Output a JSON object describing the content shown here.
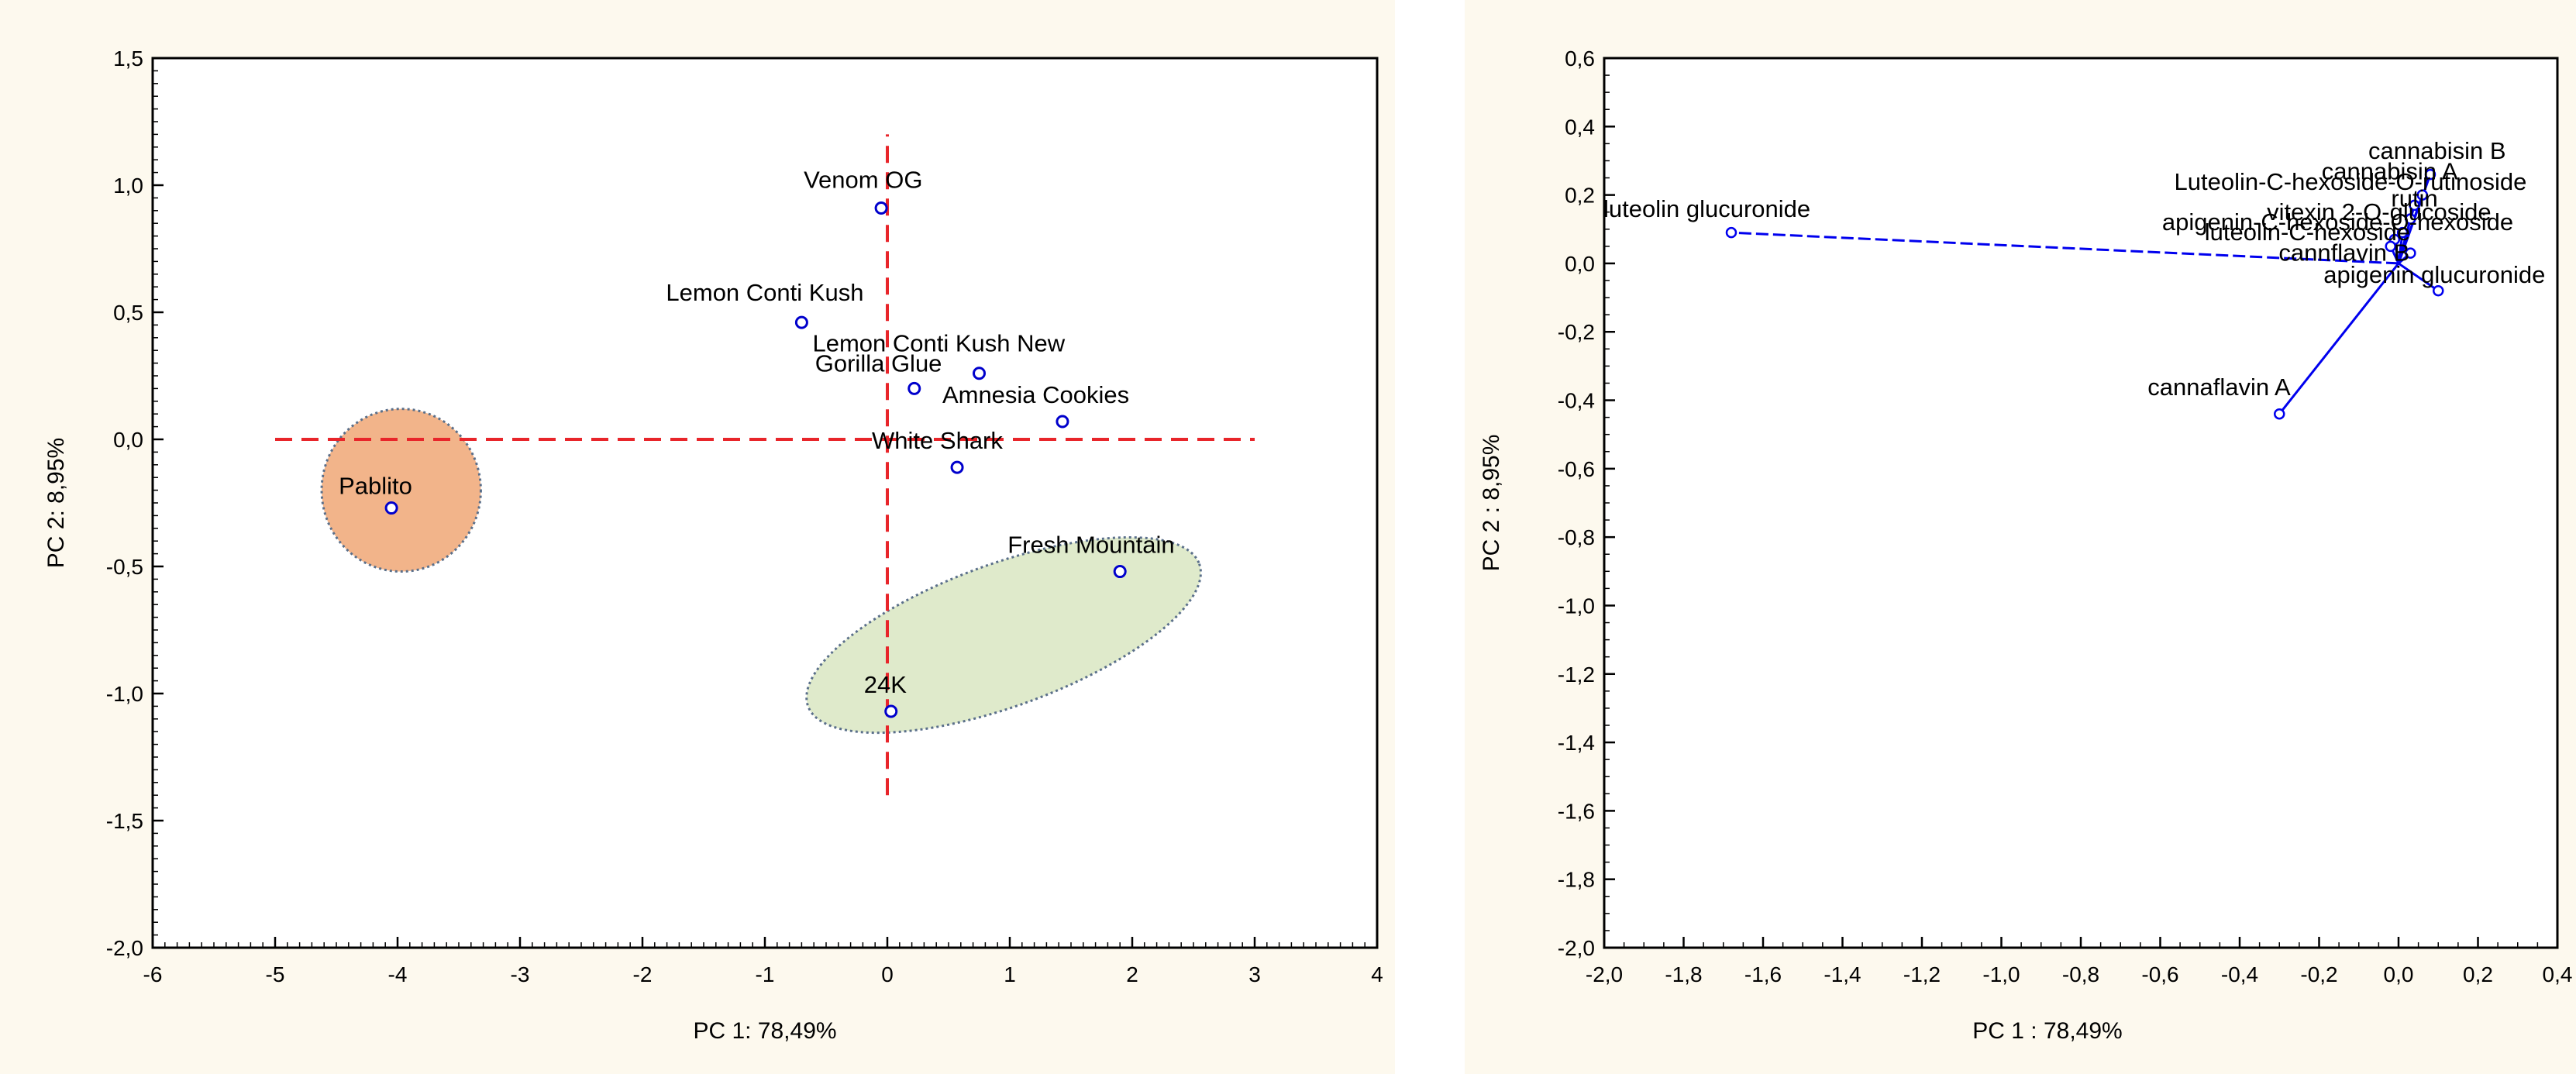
{
  "chart_data": [
    {
      "type": "scatter",
      "title": "",
      "xlabel": "PC  1: 78,49%",
      "ylabel": "PC  2:  8,95%",
      "xlim": [
        -6,
        4
      ],
      "ylim": [
        -2.0,
        1.5
      ],
      "xticks": [
        "-6",
        "-5",
        "-4",
        "-3",
        "-2",
        "-1",
        "0",
        "1",
        "2",
        "3",
        "4"
      ],
      "yticks": [
        "1,5",
        "1,0",
        "0,5",
        "0,0",
        "-0,5",
        "-1,0",
        "-1,5",
        "-2,0"
      ],
      "grid": false,
      "point_color": "#0000cc",
      "reference_line_color": "#e8252a",
      "points": [
        {
          "label": "Venom OG",
          "x": -0.05,
          "y": 0.91
        },
        {
          "label": "Lemon Conti Kush",
          "x": -0.7,
          "y": 0.46
        },
        {
          "label": "Lemon Conti Kush New",
          "x": 0.75,
          "y": 0.26
        },
        {
          "label": "Gorilla Glue",
          "x": 0.22,
          "y": 0.2
        },
        {
          "label": "Amnesia Cookies",
          "x": 1.43,
          "y": 0.07
        },
        {
          "label": "White Shark",
          "x": 0.57,
          "y": -0.11
        },
        {
          "label": "Pablito",
          "x": -4.05,
          "y": -0.27
        },
        {
          "label": "Fresh Mountain",
          "x": 1.9,
          "y": -0.52
        },
        {
          "label": "24K",
          "x": 0.03,
          "y": -1.07
        }
      ],
      "reference_lines": [
        {
          "orientation": "horizontal",
          "value": 0.0,
          "from": -5,
          "to": 3
        },
        {
          "orientation": "vertical",
          "value": 0.0,
          "from": -1.4,
          "to": 1.2
        }
      ],
      "groups": [
        {
          "members": [
            "Pablito"
          ],
          "color": "#f2b48a",
          "center": [
            -3.97,
            -0.2
          ],
          "radii": [
            0.65,
            0.32
          ],
          "angle": 0
        },
        {
          "members": [
            "Fresh Mountain",
            "24K",
            "White Shark"
          ],
          "color": "#dfeacb",
          "center": [
            0.95,
            -0.77
          ],
          "radii": [
            1.7,
            0.28
          ],
          "angle": -20
        }
      ]
    },
    {
      "type": "scatter",
      "title": "",
      "xlabel": "PC  1 : 78,49%",
      "ylabel": "PC  2 :  8,95%",
      "xlim": [
        -2.0,
        0.4
      ],
      "ylim": [
        -2.0,
        0.6
      ],
      "xticks": [
        "-2,0",
        "-1,8",
        "-1,6",
        "-1,4",
        "-1,2",
        "-1,0",
        "-0,8",
        "-0,6",
        "-0,4",
        "-0,2",
        "0,0",
        "0,2",
        "0,4"
      ],
      "yticks": [
        "0,6",
        "0,4",
        "0,2",
        "0,0",
        "-0,2",
        "-0,4",
        "-0,6",
        "-0,8",
        "-1,0",
        "-1,2",
        "-1,4",
        "-1,6",
        "-1,8",
        "-2,0"
      ],
      "grid": false,
      "vector_color": "#0000ee",
      "variables": [
        {
          "label": "luteolin glucuronide",
          "x": -1.68,
          "y": 0.09
        },
        {
          "label": "cannabisin B",
          "x": 0.08,
          "y": 0.26
        },
        {
          "label": "cannabisin A",
          "x": 0.06,
          "y": 0.2
        },
        {
          "label": "Luteolin-C-hexoside-O-rutinoside",
          "x": 0.04,
          "y": 0.17
        },
        {
          "label": "rutin",
          "x": 0.03,
          "y": 0.13
        },
        {
          "label": "vitexin 2-O-glucoside",
          "x": 0.01,
          "y": 0.09
        },
        {
          "label": "apigenin-C-hexoside-O-hexoside",
          "x": -0.01,
          "y": 0.07
        },
        {
          "label": "luteolin-C-hexoside",
          "x": -0.02,
          "y": 0.05
        },
        {
          "label": "cannflavin B",
          "x": 0.03,
          "y": 0.03
        },
        {
          "label": "apigenin glucuronide",
          "x": 0.1,
          "y": -0.08
        },
        {
          "label": "cannaflavin A",
          "x": -0.3,
          "y": -0.44
        }
      ]
    }
  ]
}
